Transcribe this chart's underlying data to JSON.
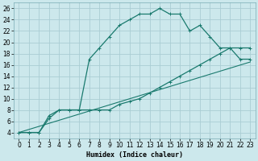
{
  "xlabel": "Humidex (Indice chaleur)",
  "bg_color": "#cce8ec",
  "grid_color": "#aacdd4",
  "line_color": "#1a7a6e",
  "xlim": [
    -0.5,
    23.5
  ],
  "ylim": [
    3,
    27
  ],
  "xticks": [
    0,
    1,
    2,
    3,
    4,
    5,
    6,
    7,
    8,
    9,
    10,
    11,
    12,
    13,
    14,
    15,
    16,
    17,
    18,
    19,
    20,
    21,
    22,
    23
  ],
  "yticks": [
    4,
    6,
    8,
    10,
    12,
    14,
    16,
    18,
    20,
    22,
    24,
    26
  ],
  "line1_x": [
    0,
    1,
    2,
    3,
    4,
    5,
    6,
    7,
    8,
    9,
    10,
    11,
    12,
    13,
    14,
    15,
    16,
    17,
    18,
    19,
    20,
    21,
    22,
    23
  ],
  "line1_y": [
    4,
    4,
    4,
    7,
    8,
    8,
    8,
    17,
    19,
    21,
    23,
    24,
    25,
    25,
    26,
    25,
    25,
    22,
    23,
    21,
    19,
    19,
    17,
    17
  ],
  "line2_x": [
    0,
    1,
    2,
    3,
    4,
    5,
    6,
    7,
    8,
    9,
    10,
    11,
    12,
    13,
    14,
    15,
    16,
    17,
    18,
    19,
    20,
    21,
    22,
    23
  ],
  "line2_y": [
    4,
    4,
    4,
    6.5,
    8,
    8,
    8,
    8,
    8,
    8,
    9,
    9.5,
    10,
    11,
    12,
    13,
    14,
    15,
    16,
    17,
    18,
    19,
    19,
    19
  ],
  "line3_x": [
    0,
    23
  ],
  "line3_y": [
    4,
    16.5
  ],
  "xlabel_fontsize": 6,
  "tick_fontsize": 5.5
}
